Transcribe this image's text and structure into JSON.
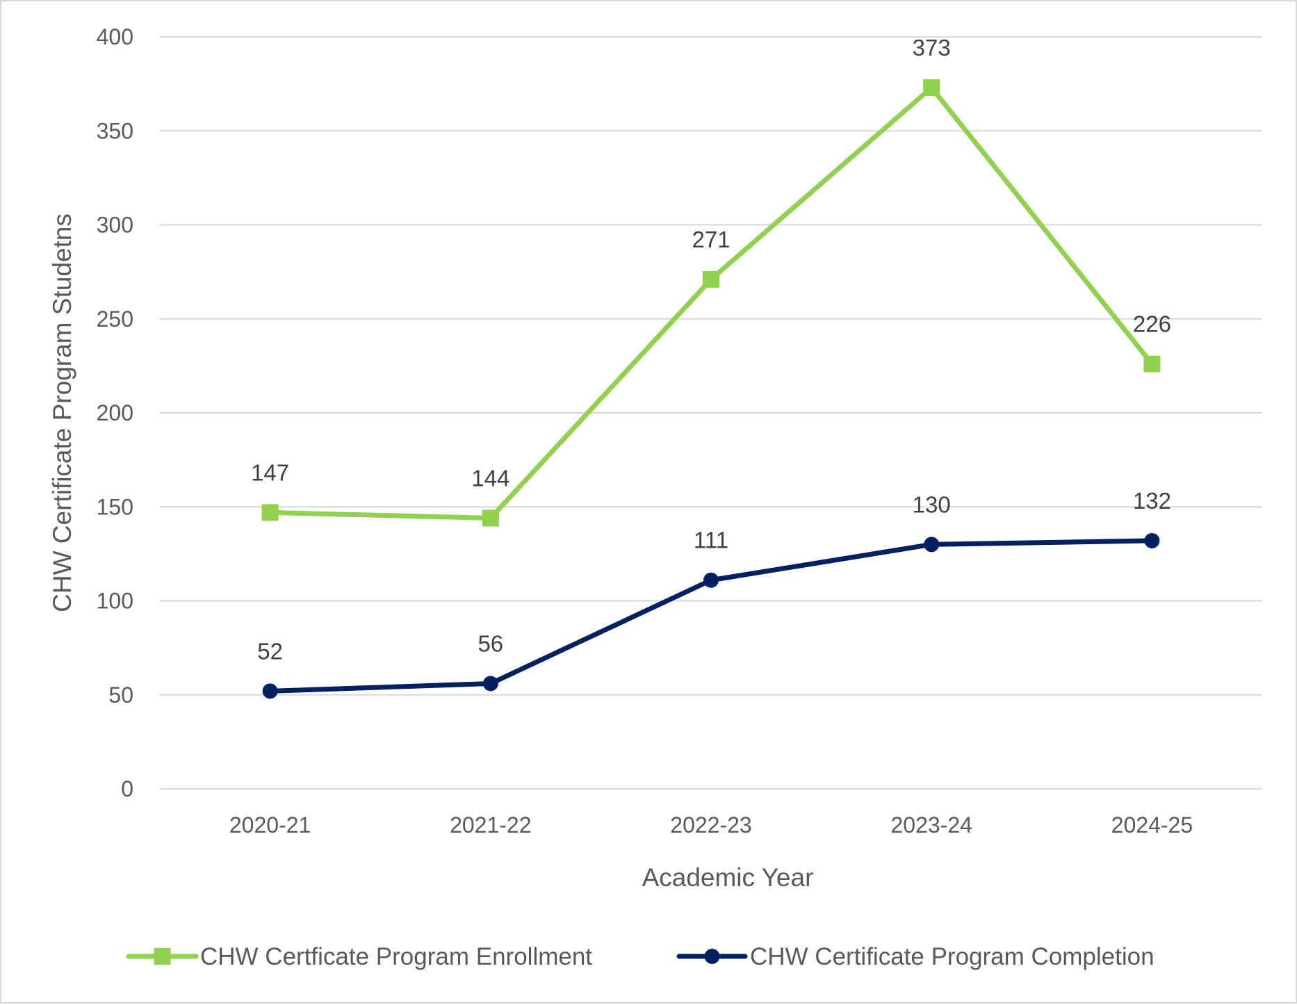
{
  "chart_data": {
    "type": "line",
    "title": "",
    "xlabel": "Academic Year",
    "ylabel": "CHW Certificate Program Studetns",
    "categories": [
      "2020-21",
      "2021-22",
      "2022-23",
      "2023-24",
      "2024-25"
    ],
    "ylim": [
      0,
      400
    ],
    "yticks": [
      0,
      50,
      100,
      150,
      200,
      250,
      300,
      350,
      400
    ],
    "grid": true,
    "legend_position": "bottom",
    "series": [
      {
        "name": "CHW Certficate Program Enrollment",
        "values": [
          147,
          144,
          271,
          373,
          226
        ],
        "labels": [
          "147",
          "144",
          "271",
          "373",
          "226"
        ],
        "color": "#92d050",
        "marker": "square"
      },
      {
        "name": "CHW Certificate Program Completion",
        "values": [
          52,
          56,
          111,
          130,
          132
        ],
        "labels": [
          "52",
          "56",
          "111",
          "130",
          "132"
        ],
        "color": "#002060",
        "marker": "circle"
      }
    ]
  }
}
